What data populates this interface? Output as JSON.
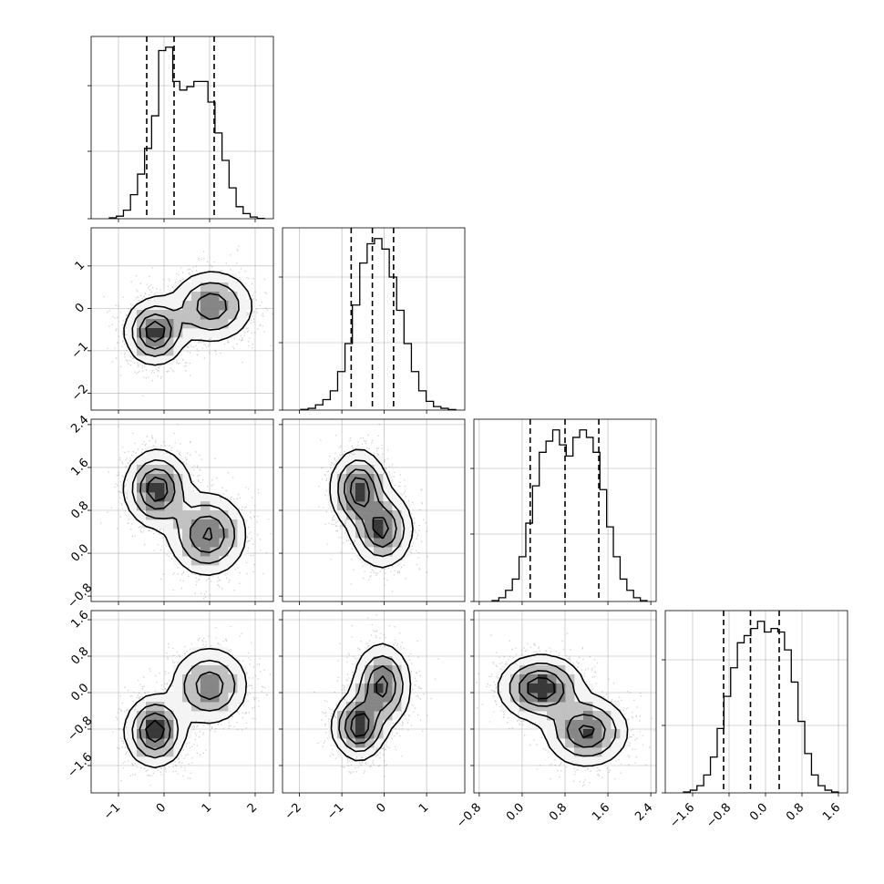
{
  "chart_data": {
    "type": "corner",
    "title": "",
    "grid": true,
    "quantile_lines": "dashed",
    "colors": {
      "line": "#000000",
      "grid": "#b0b0b0",
      "points": "#5a5a5a"
    },
    "params": [
      {
        "id": "p0",
        "label": "",
        "range": [
          -1.6,
          2.4
        ],
        "ticks": [
          -1,
          0,
          1,
          2
        ],
        "tick_labels": [
          "−1",
          "0",
          "1",
          "2"
        ],
        "quantiles": [
          -0.38,
          0.22,
          1.1
        ],
        "hist": [
          0.5,
          1.5,
          5,
          14,
          26,
          41,
          60,
          98,
          100,
          80,
          75,
          77,
          80,
          80,
          68,
          50,
          34,
          18,
          7,
          3,
          1,
          0.2
        ]
      },
      {
        "id": "p1",
        "label": "",
        "range": [
          -2.4,
          1.9
        ],
        "ticks": [
          -2,
          -1,
          0,
          1
        ],
        "tick_labels": [
          "−2",
          "−1",
          "0",
          "1"
        ],
        "quantiles": [
          -0.78,
          -0.28,
          0.22
        ],
        "hist": [
          0.4,
          1,
          3,
          6,
          11,
          22,
          38,
          60,
          84,
          95,
          98,
          92,
          76,
          57,
          38,
          22,
          11,
          5,
          2,
          1,
          0.3
        ]
      },
      {
        "id": "p2",
        "label": "",
        "range": [
          -0.9,
          2.5
        ],
        "ticks": [
          -0.8,
          0.0,
          0.8,
          1.6,
          2.4
        ],
        "tick_labels": [
          "−0.8",
          "0.0",
          "0.8",
          "1.6",
          "2.4"
        ],
        "quantiles": [
          0.15,
          0.8,
          1.43
        ],
        "hist": [
          0.5,
          2,
          6,
          12,
          24,
          42,
          62,
          80,
          86,
          92,
          84,
          78,
          88,
          92,
          88,
          80,
          60,
          40,
          24,
          12,
          6,
          2,
          0.5
        ]
      },
      {
        "id": "p3",
        "label": "",
        "range": [
          -2.2,
          1.8
        ],
        "ticks": [
          -1.6,
          -0.8,
          0.0,
          0.8,
          1.6
        ],
        "tick_labels": [
          "−1.6",
          "−0.8",
          "0.0",
          "0.8",
          "1.6"
        ],
        "quantiles": [
          -0.92,
          -0.33,
          0.3
        ],
        "hist": [
          0.5,
          1.5,
          4,
          10,
          20,
          36,
          54,
          70,
          84,
          88,
          92,
          96,
          90,
          92,
          90,
          80,
          62,
          40,
          22,
          10,
          4,
          1.5,
          0.5
        ]
      }
    ],
    "pairs": [
      {
        "x": "p0",
        "y": "p1",
        "modes": [
          {
            "mx": -0.2,
            "my": -0.55,
            "sx": 0.32,
            "sy": 0.38,
            "w": 1.0
          },
          {
            "mx": 1.05,
            "my": 0.05,
            "sx": 0.45,
            "sy": 0.42,
            "w": 0.75
          }
        ]
      },
      {
        "x": "p0",
        "y": "p2",
        "modes": [
          {
            "mx": -0.15,
            "my": 1.2,
            "sx": 0.35,
            "sy": 0.35,
            "w": 1.0
          },
          {
            "mx": 0.95,
            "my": 0.35,
            "sx": 0.42,
            "sy": 0.38,
            "w": 0.85
          }
        ]
      },
      {
        "x": "p1",
        "y": "p2",
        "modes": [
          {
            "mx": -0.6,
            "my": 1.2,
            "sx": 0.32,
            "sy": 0.35,
            "w": 1.0
          },
          {
            "mx": -0.05,
            "my": 0.45,
            "sx": 0.35,
            "sy": 0.35,
            "w": 0.9
          }
        ]
      },
      {
        "x": "p0",
        "y": "p3",
        "modes": [
          {
            "mx": -0.2,
            "my": -0.85,
            "sx": 0.32,
            "sy": 0.38,
            "w": 1.0
          },
          {
            "mx": 1.0,
            "my": 0.15,
            "sx": 0.42,
            "sy": 0.42,
            "w": 0.75
          }
        ]
      },
      {
        "x": "p1",
        "y": "p3",
        "modes": [
          {
            "mx": -0.6,
            "my": -0.75,
            "sx": 0.3,
            "sy": 0.35,
            "w": 1.0
          },
          {
            "mx": -0.05,
            "my": 0.15,
            "sx": 0.33,
            "sy": 0.45,
            "w": 0.9
          }
        ]
      },
      {
        "x": "p2",
        "y": "p3",
        "modes": [
          {
            "mx": 0.35,
            "my": 0.1,
            "sx": 0.38,
            "sy": 0.35,
            "w": 1.0
          },
          {
            "mx": 1.2,
            "my": -0.85,
            "sx": 0.38,
            "sy": 0.38,
            "w": 0.85
          }
        ]
      }
    ]
  }
}
